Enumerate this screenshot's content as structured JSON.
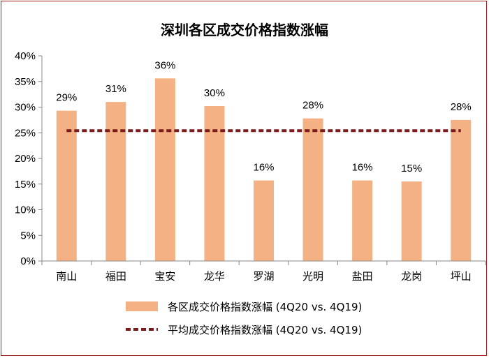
{
  "chart_data": {
    "type": "bar",
    "title": "深圳各区成交价格指数涨幅",
    "categories": [
      "南山",
      "福田",
      "宝安",
      "龙华",
      "罗湖",
      "光明",
      "盐田",
      "龙岗",
      "坪山"
    ],
    "series": [
      {
        "name": "各区成交价格指数涨幅 (4Q20 vs. 4Q19)",
        "type": "bar",
        "color": "#f4b183",
        "values": [
          0.293,
          0.31,
          0.356,
          0.302,
          0.157,
          0.278,
          0.157,
          0.155,
          0.275
        ],
        "labels": [
          "29%",
          "31%",
          "36%",
          "30%",
          "16%",
          "28%",
          "16%",
          "15%",
          "28%"
        ]
      },
      {
        "name": "平均成交价格指数涨幅 (4Q20 vs. 4Q19)",
        "type": "line",
        "style": "dashed",
        "color": "#7b1c1c",
        "values": [
          0.254,
          0.254,
          0.254,
          0.254,
          0.254,
          0.254,
          0.254,
          0.254,
          0.254
        ]
      }
    ],
    "ylim": [
      0,
      0.4
    ],
    "yticks": [
      0,
      0.05,
      0.1,
      0.15,
      0.2,
      0.25,
      0.3,
      0.35,
      0.4
    ],
    "ytick_labels": [
      "0%",
      "5%",
      "10%",
      "15%",
      "20%",
      "25%",
      "30%",
      "35%",
      "40%"
    ],
    "xlabel": "",
    "ylabel": "",
    "grid": false,
    "legend_position": "bottom"
  }
}
